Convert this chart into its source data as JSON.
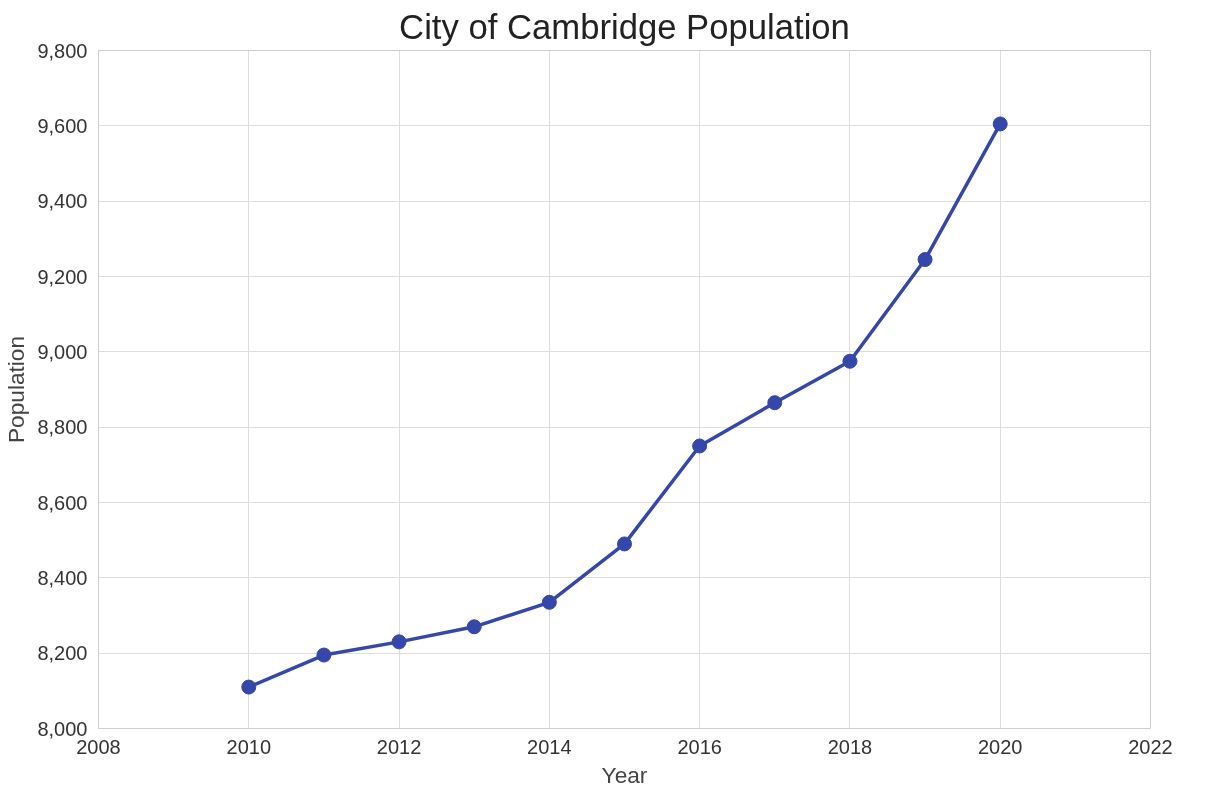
{
  "chart_data": {
    "type": "line",
    "title": "City of Cambridge Population",
    "xlabel": "Year",
    "ylabel": "Population",
    "x": [
      2010,
      2011,
      2012,
      2013,
      2014,
      2015,
      2016,
      2017,
      2018,
      2019,
      2020
    ],
    "series": [
      {
        "color": "#3547a8",
        "values": [
          8110,
          8195,
          8230,
          8270,
          8335,
          8490,
          8750,
          8865,
          8975,
          9245,
          9605
        ]
      }
    ],
    "xlim": [
      2008,
      2022
    ],
    "xticks": [
      2008,
      2010,
      2012,
      2014,
      2016,
      2018,
      2020,
      2022
    ],
    "ylim": [
      8000,
      9800
    ],
    "yticks": [
      {
        "value": 8000,
        "label": "8,000"
      },
      {
        "value": 8200,
        "label": "8,200"
      },
      {
        "value": 8400,
        "label": "8,400"
      },
      {
        "value": 8600,
        "label": "8,600"
      },
      {
        "value": 8800,
        "label": "8,800"
      },
      {
        "value": 9000,
        "label": "9,000"
      },
      {
        "value": 9200,
        "label": "9,200"
      },
      {
        "value": 9400,
        "label": "9,400"
      },
      {
        "value": 9600,
        "label": "9,600"
      },
      {
        "value": 9800,
        "label": "9,800"
      }
    ],
    "grid": true,
    "marker": "circle",
    "line_style": "solid"
  }
}
